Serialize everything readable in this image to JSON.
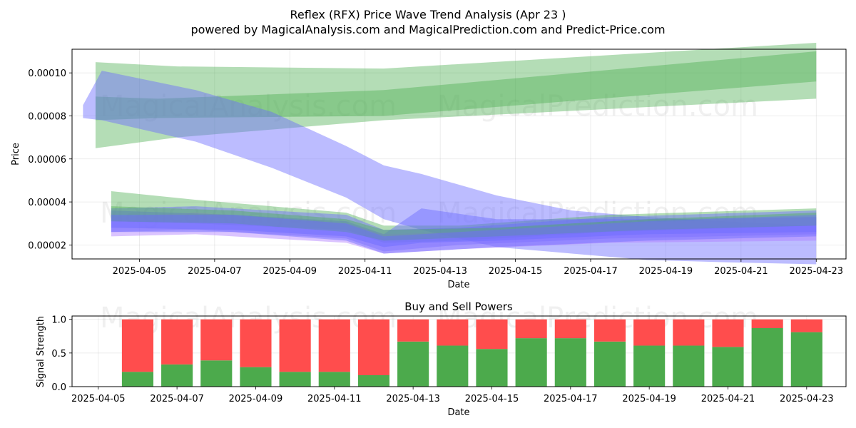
{
  "header": {
    "title": "Reflex (RFX) Price Wave Trend Analysis (Apr 23 )",
    "subtitle": "powered by MagicalAnalysis.com and MagicalPrediction.com and Predict-Price.com"
  },
  "watermarks": [
    "MagicalAnalysis.com",
    "MagicalPrediction.com"
  ],
  "colors": {
    "green": "#4caf50",
    "blue": "#6b6bff",
    "purple": "#b07cff",
    "red": "#ff4d4d",
    "bar_green": "#4caa4c"
  },
  "chart_data": [
    {
      "type": "area",
      "title": "",
      "xlabel": "Date",
      "ylabel": "Price",
      "xlim": [
        "2025-04-03T17:00",
        "2025-04-24T07:00"
      ],
      "ylim": [
        1.35e-05,
        0.000111
      ],
      "x_ticks": [
        "2025-04-05",
        "2025-04-07",
        "2025-04-09",
        "2025-04-11",
        "2025-04-13",
        "2025-04-15",
        "2025-04-17",
        "2025-04-19",
        "2025-04-21",
        "2025-04-23"
      ],
      "y_ticks": [
        "0.00002",
        "0.00004",
        "0.00006",
        "0.00008",
        "0.00010"
      ],
      "grid": true,
      "bands": [
        {
          "color": "green",
          "x": [
            "2025-04-04T08:00",
            "2025-04-06T12:00",
            "2025-04-12T00:00",
            "2025-04-23T12:00"
          ],
          "upper": [
            0.000105,
            0.000103,
            0.000102,
            0.000114
          ],
          "lower": [
            6.5e-05,
            7e-05,
            7.8e-05,
            8.8e-05
          ]
        },
        {
          "color": "green",
          "x": [
            "2025-04-04T08:00",
            "2025-04-06T00:00",
            "2025-04-12T00:00",
            "2025-04-23T12:00"
          ],
          "upper": [
            8.9e-05,
            8.8e-05,
            9.2e-05,
            0.00011
          ],
          "lower": [
            7.8e-05,
            7.9e-05,
            8e-05,
            9.6e-05
          ]
        },
        {
          "color": "blue",
          "x": [
            "2025-04-04T00:00",
            "2025-04-04T12:00",
            "2025-04-07T00:00",
            "2025-04-09T00:00",
            "2025-04-11T00:00",
            "2025-04-12T00:00",
            "2025-04-13T00:00",
            "2025-04-15T00:00",
            "2025-04-17T00:00",
            "2025-04-19T00:00",
            "2025-04-21T00:00",
            "2025-04-23T12:00"
          ],
          "upper": [
            8.5e-05,
            0.000101,
            9.2e-05,
            8.2e-05,
            6.6e-05,
            5.7e-05,
            5.3e-05,
            4.3e-05,
            3.6e-05,
            3.3e-05,
            3.1e-05,
            2.9e-05
          ],
          "lower": [
            7.9e-05,
            7.8e-05,
            6.8e-05,
            5.6e-05,
            4.2e-05,
            3.2e-05,
            2.7e-05,
            1.9e-05,
            1.6e-05,
            1.3e-05,
            1.2e-05,
            1.1e-05
          ]
        },
        {
          "color": "green",
          "x": [
            "2025-04-04T18:00",
            "2025-04-07T00:00",
            "2025-04-11T00:00",
            "2025-04-12T00:00",
            "2025-04-14T00:00",
            "2025-04-18T00:00",
            "2025-04-23T12:00"
          ],
          "upper": [
            4.5e-05,
            4.1e-05,
            3.5e-05,
            2.9e-05,
            2.9e-05,
            3.4e-05,
            3.7e-05
          ],
          "lower": [
            3.1e-05,
            3e-05,
            2.7e-05,
            2.1e-05,
            2.2e-05,
            2.6e-05,
            2.9e-05
          ]
        },
        {
          "color": "blue",
          "x": [
            "2025-04-04T18:00",
            "2025-04-07T00:00",
            "2025-04-11T00:00",
            "2025-04-12T00:00",
            "2025-04-14T00:00",
            "2025-04-18T00:00",
            "2025-04-23T12:00"
          ],
          "upper": [
            3.7e-05,
            3.8e-05,
            3.4e-05,
            2.7e-05,
            2.8e-05,
            3.3e-05,
            3.6e-05
          ],
          "lower": [
            2.6e-05,
            2.7e-05,
            2.3e-05,
            1.7e-05,
            2e-05,
            2.3e-05,
            2.5e-05
          ]
        },
        {
          "color": "purple",
          "x": [
            "2025-04-04T18:00",
            "2025-04-07T00:00",
            "2025-04-11T00:00",
            "2025-04-12T00:00",
            "2025-04-14T00:00",
            "2025-04-18T00:00",
            "2025-04-23T12:00"
          ],
          "upper": [
            3.3e-05,
            3.5e-05,
            3e-05,
            2.5e-05,
            2.6e-05,
            3e-05,
            3.3e-05
          ],
          "lower": [
            2.4e-05,
            2.5e-05,
            2.1e-05,
            1.6e-05,
            1.8e-05,
            2.1e-05,
            2.2e-05
          ]
        },
        {
          "color": "blue",
          "x": [
            "2025-04-04T18:00",
            "2025-04-08T00:00",
            "2025-04-11T00:00",
            "2025-04-12T00:00",
            "2025-04-13T00:00",
            "2025-04-15T00:00",
            "2025-04-19T00:00",
            "2025-04-23T12:00"
          ],
          "upper": [
            3.6e-05,
            3.4e-05,
            3.1e-05,
            2.5e-05,
            3.7e-05,
            3.2e-05,
            3.2e-05,
            3.3e-05
          ],
          "lower": [
            2.8e-05,
            2.7e-05,
            2.4e-05,
            1.9e-05,
            2.1e-05,
            2.2e-05,
            2.5e-05,
            2.6e-05
          ]
        },
        {
          "color": "green",
          "x": [
            "2025-04-04T18:00",
            "2025-04-08T00:00",
            "2025-04-11T00:00",
            "2025-04-12T00:00",
            "2025-04-15T00:00",
            "2025-04-19T00:00",
            "2025-04-23T12:00"
          ],
          "upper": [
            3.8e-05,
            3.6e-05,
            3.2e-05,
            2.7e-05,
            2.8e-05,
            3.2e-05,
            3.5e-05
          ],
          "lower": [
            3.1e-05,
            3e-05,
            2.6e-05,
            2.2e-05,
            2.4e-05,
            2.7e-05,
            2.9e-05
          ]
        },
        {
          "color": "blue",
          "x": [
            "2025-04-04T18:00",
            "2025-04-08T00:00",
            "2025-04-11T00:00",
            "2025-04-12T00:00",
            "2025-04-15T00:00",
            "2025-04-19T00:00",
            "2025-04-23T12:00"
          ],
          "upper": [
            3.4e-05,
            3.4e-05,
            3e-05,
            2.4e-05,
            2.7e-05,
            3.1e-05,
            3.4e-05
          ],
          "lower": [
            2.6e-05,
            2.6e-05,
            2.2e-05,
            1.6e-05,
            1.9e-05,
            2.2e-05,
            2.4e-05
          ]
        }
      ]
    },
    {
      "type": "bar",
      "title": "Buy and Sell Powers",
      "xlabel": "Date",
      "ylabel": "Signal Strength",
      "xlim": [
        "2025-04-04T20:00",
        "2025-04-24T12:00"
      ],
      "ylim": [
        0,
        1.05
      ],
      "x_ticks": [
        "2025-04-05",
        "2025-04-07",
        "2025-04-09",
        "2025-04-11",
        "2025-04-13",
        "2025-04-15",
        "2025-04-17",
        "2025-04-19",
        "2025-04-21",
        "2025-04-23"
      ],
      "y_ticks": [
        "0.0",
        "0.5",
        "1.0"
      ],
      "grid": true,
      "categories": [
        "2025-04-06",
        "2025-04-07",
        "2025-04-08",
        "2025-04-09",
        "2025-04-10",
        "2025-04-11",
        "2025-04-12",
        "2025-04-13",
        "2025-04-14",
        "2025-04-15",
        "2025-04-16",
        "2025-04-17",
        "2025-04-18",
        "2025-04-19",
        "2025-04-20",
        "2025-04-21",
        "2025-04-22",
        "2025-04-23"
      ],
      "series": [
        {
          "color": "bar_green",
          "values": [
            0.22,
            0.33,
            0.39,
            0.29,
            0.22,
            0.22,
            0.17,
            0.67,
            0.61,
            0.56,
            0.72,
            0.72,
            0.67,
            0.61,
            0.61,
            0.59,
            0.87,
            0.81
          ]
        },
        {
          "color": "red",
          "values": [
            0.78,
            0.67,
            0.61,
            0.71,
            0.78,
            0.78,
            0.83,
            0.33,
            0.39,
            0.44,
            0.28,
            0.28,
            0.33,
            0.39,
            0.39,
            0.41,
            0.13,
            0.19
          ]
        }
      ]
    }
  ]
}
